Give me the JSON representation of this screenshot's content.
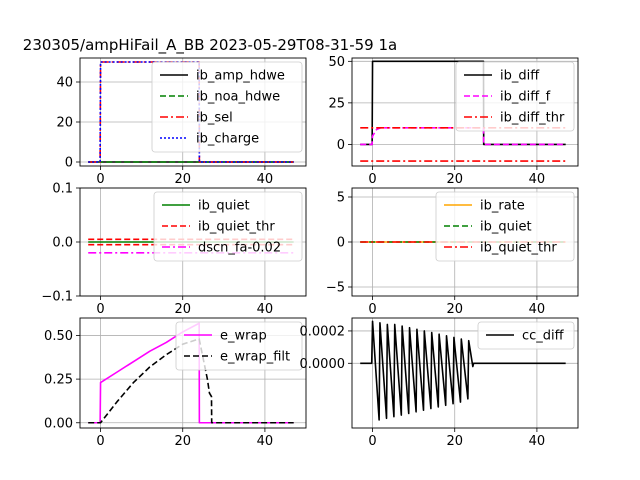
{
  "figure": {
    "title": "230305/ampHiFail_A_BB   2023-05-29T08-31-59 1a"
  },
  "chart_data": [
    {
      "type": "line",
      "xlim": [
        -5,
        50
      ],
      "ylim": [
        -2,
        52
      ],
      "xticks": [
        0,
        20,
        40
      ],
      "xtick_labels": [
        "0",
        "20",
        "40"
      ],
      "yticks": [
        0,
        20,
        40
      ],
      "ytick_labels": [
        "0",
        "20",
        "40"
      ],
      "grid": true,
      "legend_position": "top-right",
      "series": [
        {
          "name": "ib_amp_hdwe",
          "color": "#000000",
          "dash": "solid",
          "x": [
            -3,
            0,
            0.05,
            24,
            24.05,
            47
          ],
          "y": [
            0,
            0,
            0,
            0,
            0,
            0
          ]
        },
        {
          "name": "ib_noa_hdwe",
          "color": "#008000",
          "dash": "dashed",
          "x": [
            -3,
            47
          ],
          "y": [
            0,
            0
          ]
        },
        {
          "name": "ib_sel",
          "color": "#ff0000",
          "dash": "dashdot",
          "x": [
            -3,
            -0.1,
            0,
            24,
            24.05,
            47
          ],
          "y": [
            0,
            0,
            50,
            50,
            0,
            0
          ]
        },
        {
          "name": "ib_charge",
          "color": "#0000ff",
          "dash": "dotted",
          "x": [
            -3,
            -0.1,
            0,
            24,
            24.05,
            47
          ],
          "y": [
            0,
            0,
            50,
            50,
            0,
            0
          ]
        }
      ]
    },
    {
      "type": "line",
      "xlim": [
        -5,
        50
      ],
      "ylim": [
        -13,
        52
      ],
      "xticks": [
        0,
        20,
        40
      ],
      "xtick_labels": [
        "0",
        "20",
        "40"
      ],
      "yticks": [
        0,
        25,
        50
      ],
      "ytick_labels": [
        "0",
        "25",
        "50"
      ],
      "grid": true,
      "legend_position": "top-right",
      "series": [
        {
          "name": "ib_diff",
          "color": "#000000",
          "dash": "solid",
          "x": [
            -3,
            -0.1,
            0,
            27,
            27.05,
            47
          ],
          "y": [
            0,
            0,
            50,
            50,
            0,
            0
          ]
        },
        {
          "name": "ib_diff_f",
          "color": "#ff00ff",
          "dash": "dashed",
          "x": [
            -3,
            -0.1,
            0,
            1,
            2,
            27,
            27.05,
            47
          ],
          "y": [
            0,
            0,
            5,
            9,
            10,
            10,
            0,
            0
          ]
        },
        {
          "name": "ib_diff_thr",
          "color": "#ff0000",
          "dash": "dashdot",
          "x": [
            -3,
            47
          ],
          "y": [
            10,
            10
          ]
        },
        {
          "name": "",
          "color": "#ff0000",
          "dash": "dashdot",
          "x": [
            -3,
            47
          ],
          "y": [
            -10,
            -10
          ]
        }
      ]
    },
    {
      "type": "line",
      "xlim": [
        -5,
        50
      ],
      "ylim": [
        -0.1,
        0.1
      ],
      "xticks": [
        0,
        20,
        40
      ],
      "xtick_labels": [
        "0",
        "20",
        "40"
      ],
      "yticks": [
        -0.1,
        0,
        0.1
      ],
      "ytick_labels": [
        "−0.1",
        "0.0",
        "0.1"
      ],
      "grid": true,
      "legend_position": "top-right",
      "series": [
        {
          "name": "ib_quiet",
          "color": "#008000",
          "dash": "solid",
          "x": [
            -3,
            47
          ],
          "y": [
            0,
            0
          ]
        },
        {
          "name": "ib_quiet_thr",
          "color": "#ff0000",
          "dash": "dashed",
          "x": [
            -3,
            47
          ],
          "y": [
            0.005,
            0.005
          ]
        },
        {
          "name": "",
          "color": "#ff0000",
          "dash": "dashed",
          "x": [
            -3,
            47
          ],
          "y": [
            -0.005,
            -0.005
          ]
        },
        {
          "name": "dscn_fa-0.02",
          "color": "#ff00ff",
          "dash": "dashdot",
          "x": [
            -3,
            47
          ],
          "y": [
            -0.02,
            -0.02
          ]
        }
      ]
    },
    {
      "type": "line",
      "xlim": [
        -5,
        50
      ],
      "ylim": [
        -6,
        6
      ],
      "xticks": [
        0,
        20,
        40
      ],
      "xtick_labels": [
        "0",
        "20",
        "40"
      ],
      "yticks": [
        -5,
        0,
        5
      ],
      "ytick_labels": [
        "−5",
        "0",
        "5"
      ],
      "grid": true,
      "legend_position": "top-right",
      "series": [
        {
          "name": "ib_rate",
          "color": "#ffa500",
          "dash": "solid",
          "x": [
            -3,
            47
          ],
          "y": [
            0,
            0
          ]
        },
        {
          "name": "ib_quiet",
          "color": "#008000",
          "dash": "dashed",
          "x": [
            -3,
            47
          ],
          "y": [
            0,
            0
          ]
        },
        {
          "name": "ib_quiet_thr",
          "color": "#ff0000",
          "dash": "dashdot",
          "x": [
            -3,
            47
          ],
          "y": [
            0,
            0
          ]
        }
      ]
    },
    {
      "type": "line",
      "xlim": [
        -5,
        50
      ],
      "ylim": [
        -0.03,
        0.6
      ],
      "xticks": [
        0,
        20,
        40
      ],
      "xtick_labels": [
        "0",
        "20",
        "40"
      ],
      "yticks": [
        0,
        0.25,
        0.5
      ],
      "ytick_labels": [
        "0.00",
        "0.25",
        "0.50"
      ],
      "grid": true,
      "legend_position": "top-right",
      "series": [
        {
          "name": "e_wrap",
          "color": "#ff00ff",
          "dash": "solid",
          "x": [
            -3,
            -0.1,
            0,
            4,
            8,
            12,
            16,
            20,
            24,
            24.05,
            47
          ],
          "y": [
            0,
            0,
            0.23,
            0.29,
            0.35,
            0.41,
            0.46,
            0.52,
            0.57,
            0,
            0
          ]
        },
        {
          "name": "e_wrap_filt",
          "color": "#000000",
          "dash": "dashed",
          "x": [
            -3,
            0,
            1,
            4,
            8,
            12,
            16,
            20,
            24,
            26,
            26.5,
            27,
            27.05,
            47
          ],
          "y": [
            0,
            0,
            0.03,
            0.12,
            0.23,
            0.32,
            0.39,
            0.45,
            0.48,
            0.25,
            0.17,
            0.15,
            0,
            0
          ]
        }
      ]
    },
    {
      "type": "line",
      "xlim": [
        -5,
        50
      ],
      "ylim": [
        -0.0004,
        0.00028
      ],
      "xticks": [
        0,
        20,
        40
      ],
      "xtick_labels": [
        "0",
        "20",
        "40"
      ],
      "yticks": [
        0,
        0.0002
      ],
      "ytick_labels": [
        "0.0000",
        "0.0002"
      ],
      "grid": true,
      "legend_position": "top-right",
      "series": [
        {
          "name": "cc_diff",
          "color": "#000000",
          "dash": "solid",
          "x": [
            -3,
            -0.2,
            0,
            1.6,
            1.8,
            3.4,
            3.6,
            5.2,
            5.4,
            7.0,
            7.2,
            8.8,
            9.0,
            10.6,
            10.8,
            12.4,
            12.6,
            14.2,
            14.4,
            16.0,
            16.2,
            17.8,
            18.0,
            19.6,
            19.8,
            21.4,
            21.6,
            23.2,
            23.4,
            24.4,
            24.6,
            47
          ],
          "y": [
            0,
            0,
            0.00026,
            -0.00035,
            0.00025,
            -0.00034,
            0.00024,
            -0.00033,
            0.00024,
            -0.00032,
            0.00023,
            -0.00031,
            0.00022,
            -0.0003,
            0.00021,
            -0.00029,
            0.0002,
            -0.00028,
            0.00019,
            -0.00027,
            0.00018,
            -0.00026,
            0.00017,
            -0.00025,
            0.00016,
            -0.00024,
            0.00015,
            -0.00022,
            0.00014,
            -2e-05,
            0,
            0
          ]
        }
      ]
    }
  ]
}
